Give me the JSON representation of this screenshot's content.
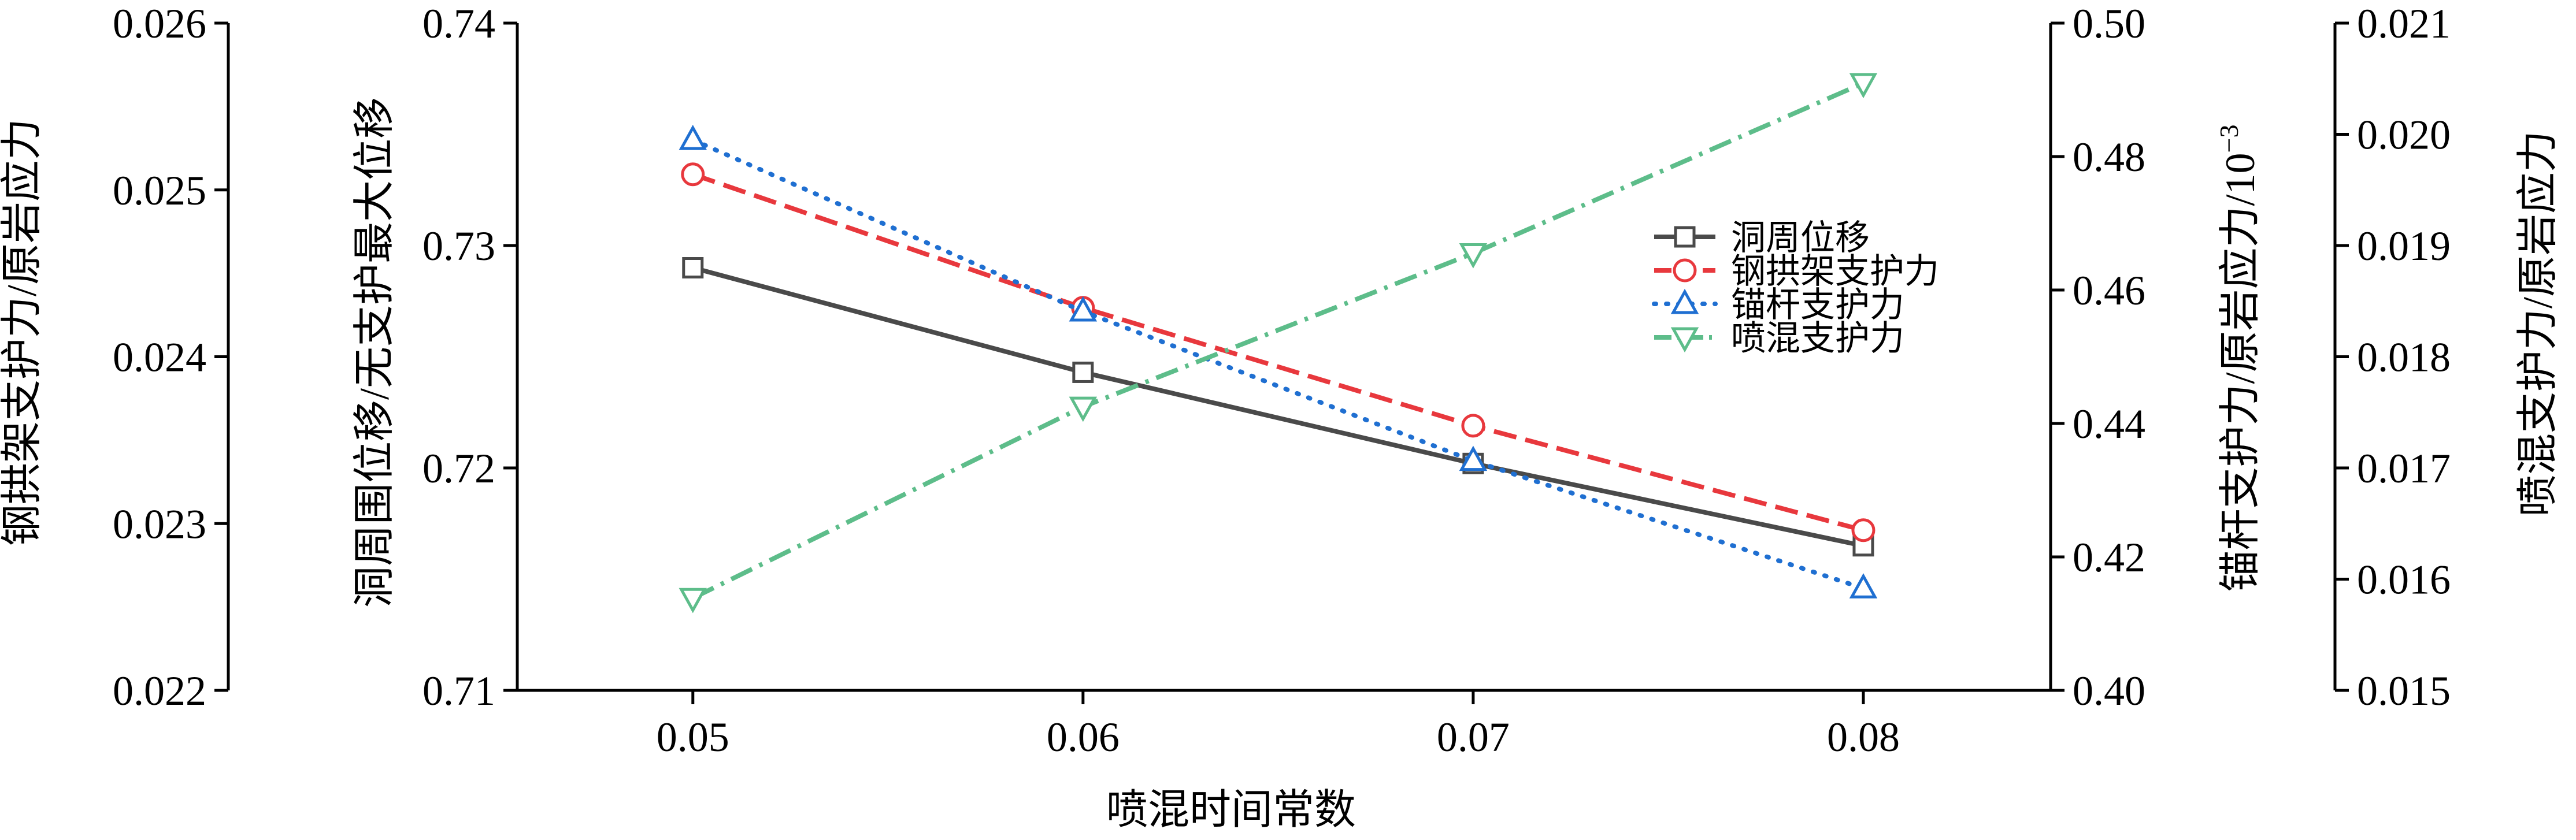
{
  "chart_data": {
    "type": "line",
    "xlabel": "喷混时间常数",
    "x": [
      0.05,
      0.06,
      0.07,
      0.08
    ],
    "x_ticks": [
      "0.05",
      "0.06",
      "0.07",
      "0.08"
    ],
    "xlim": [
      0.0455,
      0.0848
    ],
    "grid": false,
    "legend_position": "center-right",
    "axes": {
      "main": {
        "label": "洞周围位移/无支护最大位移",
        "lim": [
          0.71,
          0.74
        ],
        "ticks": [
          "0.71",
          "0.72",
          "0.73",
          "0.74"
        ]
      },
      "left_outer": {
        "label": "钢拱架支护力/原岩应力",
        "lim": [
          0.022,
          0.026
        ],
        "ticks": [
          "0.022",
          "0.023",
          "0.024",
          "0.025",
          "0.026"
        ]
      },
      "right_inner": {
        "label": "锚杆支护力/原岩应力/10",
        "label_sup": "−3",
        "lim": [
          0.4,
          0.5
        ],
        "ticks": [
          "0.40",
          "0.42",
          "0.44",
          "0.46",
          "0.48",
          "0.50"
        ]
      },
      "right_outer": {
        "label": "喷混支护力/原岩应力",
        "lim": [
          0.015,
          0.021
        ],
        "ticks": [
          "0.015",
          "0.016",
          "0.017",
          "0.018",
          "0.019",
          "0.020",
          "0.021"
        ]
      }
    },
    "series": [
      {
        "name": "洞周位移",
        "axis": "main",
        "values": [
          0.729,
          0.7243,
          0.7202,
          0.7165
        ],
        "color": "#4a4a4a",
        "dash": "",
        "marker": "square"
      },
      {
        "name": "钢拱架支护力",
        "axis": "main",
        "values": [
          0.7332,
          0.7272,
          0.7219,
          0.7172
        ],
        "color": "#e8383d",
        "dash": "40 16",
        "marker": "circle"
      },
      {
        "name": "锚杆支护力",
        "axis": "right_inner",
        "values": [
          0.4825,
          0.4568,
          0.4344,
          0.4153
        ],
        "color": "#1f6fd1",
        "dash": "3 18",
        "marker": "triangle-up"
      },
      {
        "name": "喷混支护力",
        "axis": "right_outer",
        "values": [
          0.01583,
          0.01755,
          0.01893,
          0.02046
        ],
        "color": "#5dbd8a",
        "dash": "40 14 6 14",
        "marker": "triangle-down"
      }
    ]
  }
}
